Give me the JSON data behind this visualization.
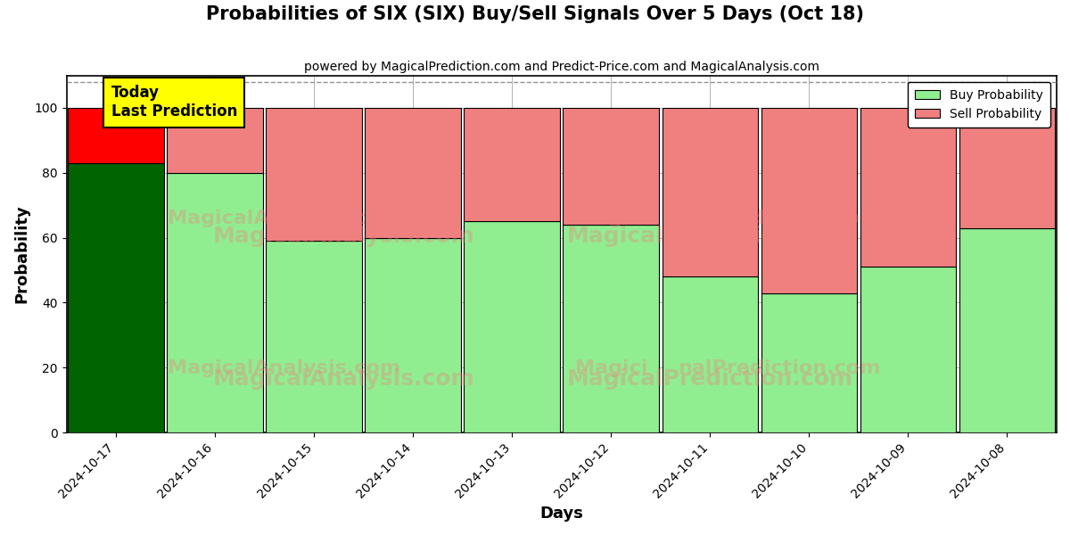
{
  "title": "Probabilities of SIX (SIX) Buy/Sell Signals Over 5 Days (Oct 18)",
  "subtitle": "powered by MagicalPrediction.com and Predict-Price.com and MagicalAnalysis.com",
  "xlabel": "Days",
  "ylabel": "Probability",
  "dates": [
    "2024-10-17",
    "2024-10-16",
    "2024-10-15",
    "2024-10-14",
    "2024-10-13",
    "2024-10-12",
    "2024-10-11",
    "2024-10-10",
    "2024-10-09",
    "2024-10-08"
  ],
  "buy_values": [
    83,
    80,
    59,
    60,
    65,
    64,
    48,
    43,
    51,
    63
  ],
  "sell_values": [
    17,
    20,
    41,
    40,
    35,
    36,
    52,
    57,
    49,
    37
  ],
  "today_buy_color": "#006400",
  "today_sell_color": "#ff0000",
  "buy_color": "#90EE90",
  "sell_color": "#F08080",
  "bar_edge_color": "#000000",
  "ylim": [
    0,
    110
  ],
  "yticks": [
    0,
    20,
    40,
    60,
    80,
    100
  ],
  "dashed_line_y": 108,
  "legend_buy_label": "Buy Probability",
  "legend_sell_label": "Sell Probability",
  "today_label_line1": "Today",
  "today_label_line2": "Last Prediction",
  "figsize": [
    12,
    6
  ],
  "dpi": 100,
  "bg_color": "#ffffff"
}
